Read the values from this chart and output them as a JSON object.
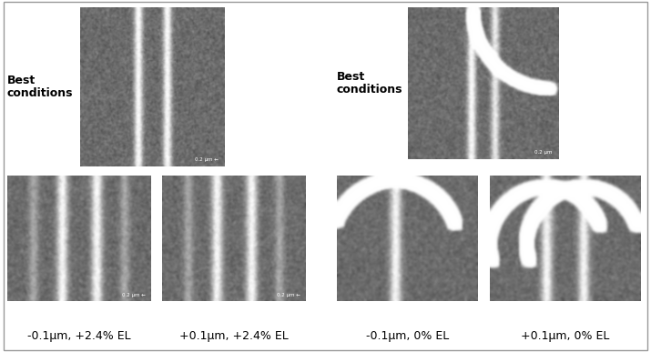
{
  "figure_bg": "#ffffff",
  "border_color": "#999999",
  "labels_bottom": [
    "-0.1μm, +2.4% EL",
    "+0.1μm, +2.4% EL",
    "-0.1μm, 0% EL",
    "+0.1μm, 0% EL"
  ],
  "label_best_conditions": "Best\nconditions",
  "font_size_labels": 9,
  "font_size_best": 9,
  "noise_seed": 42,
  "img_bg_mean": 108,
  "img_bg_std": 20,
  "line_brightness": 150,
  "line_sigma": 3.5
}
